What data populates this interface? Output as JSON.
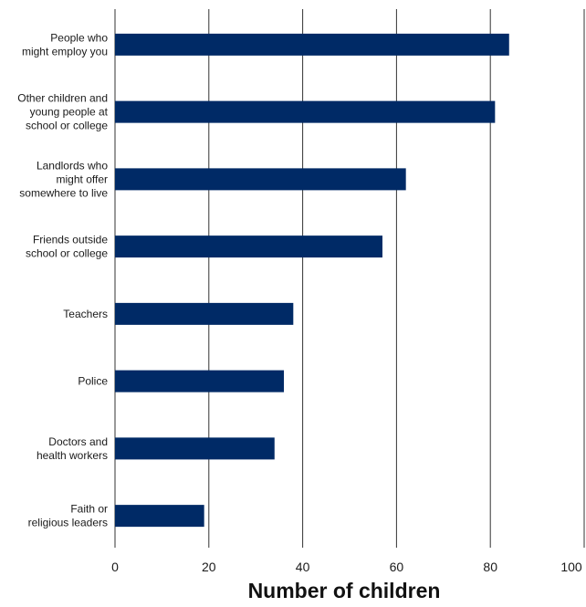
{
  "chart_data": {
    "type": "bar",
    "orientation": "horizontal",
    "categories": [
      [
        "People who",
        "might employ you"
      ],
      [
        "Other children and",
        "young people at",
        "school or college"
      ],
      [
        "Landlords who",
        "might offer",
        "somewhere to live"
      ],
      [
        "Friends outside",
        "school or college"
      ],
      [
        "Teachers"
      ],
      [
        "Police"
      ],
      [
        "Doctors and",
        "health workers"
      ],
      [
        "Faith or",
        "religious leaders"
      ]
    ],
    "values": [
      84,
      81,
      62,
      57,
      38,
      36,
      34,
      19
    ],
    "xlabel": "Number of children",
    "xlim": [
      0,
      100
    ],
    "xticks": [
      "0",
      "20",
      "40",
      "60",
      "80",
      "100"
    ],
    "grid": "vertical",
    "bar_color": "#002a66"
  }
}
